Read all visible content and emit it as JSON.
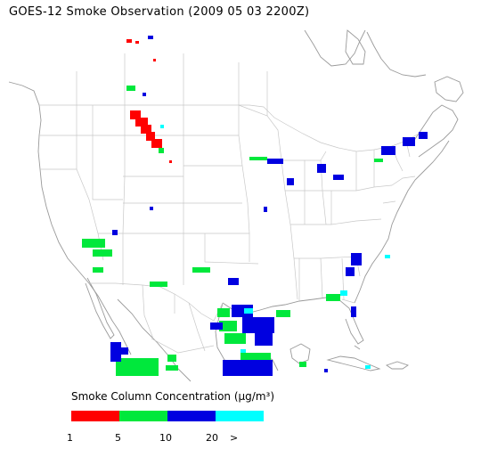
{
  "title": "GOES-12 Smoke Observation (2009 05 03  2200Z)",
  "legend": {
    "title": "Smoke Column Concentration (µg/m³)",
    "bins": [
      {
        "color": "#ff0000"
      },
      {
        "color": "#00e83c"
      },
      {
        "color": "#0000e0"
      },
      {
        "color": "#00ffff"
      }
    ],
    "ticks": [
      "1",
      "5",
      "10",
      "20",
      ">"
    ]
  },
  "colors": {
    "boundary": "#c8c8c8",
    "coast": "#9a9a9a"
  }
}
